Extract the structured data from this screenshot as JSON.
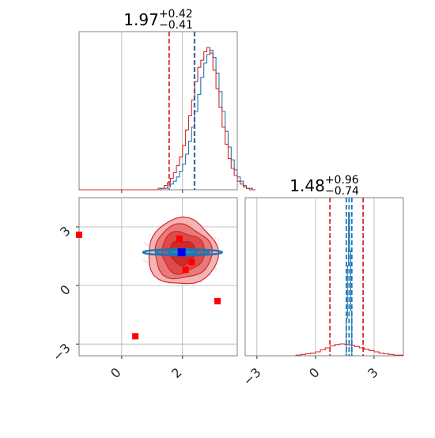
{
  "chart_data": [
    {
      "type": "histogram",
      "panel": "top-left",
      "title": {
        "value": "1.97",
        "plus": "+0.42",
        "minus": "−0.41"
      },
      "xlim": [
        -1.4,
        3.8
      ],
      "bin_start": -1.4,
      "bin_width": 0.1,
      "series": [
        {
          "color": "#1f77b4",
          "counts": [
            0,
            0,
            0,
            0,
            0,
            0,
            0,
            0,
            0,
            0,
            0,
            0,
            0,
            0,
            0,
            0,
            0,
            0,
            0,
            0,
            0,
            0,
            0,
            0,
            0,
            0,
            0,
            1,
            1,
            2,
            4,
            6,
            9,
            13,
            18,
            25,
            34,
            44,
            55,
            67,
            79,
            89,
            95,
            98,
            93,
            82,
            69,
            55,
            41,
            30,
            21,
            14,
            9,
            6,
            3,
            1,
            1,
            0
          ]
        },
        {
          "color": "#d62728",
          "counts": [
            0,
            0,
            0,
            0,
            0,
            0,
            0,
            0,
            0,
            0,
            0,
            0,
            0,
            0,
            0,
            0,
            0,
            0,
            0,
            0,
            0,
            0,
            0,
            0,
            0,
            0,
            1,
            1,
            3,
            5,
            8,
            12,
            17,
            23,
            31,
            42,
            52,
            63,
            76,
            86,
            91,
            97,
            100,
            96,
            84,
            71,
            58,
            44,
            32,
            22,
            15,
            10,
            6,
            4,
            2,
            1,
            0,
            0
          ]
        }
      ],
      "quantile_lines": [
        {
          "color": "#d62728",
          "x": [
            1.56,
            2.39
          ]
        },
        {
          "color": "#1f77b4",
          "x": [
            2.4
          ]
        }
      ]
    },
    {
      "type": "2d-density",
      "panel": "bottom-left",
      "xlim": [
        -1.4,
        3.8
      ],
      "ylim": [
        -3.6,
        4.5
      ],
      "xticks": [
        "0",
        "2"
      ],
      "yticks": [
        "−3",
        "0",
        "3"
      ],
      "xtick_values": [
        0,
        2
      ],
      "ytick_values": [
        -3,
        0,
        3
      ],
      "red_markers": [
        [
          -1.4,
          2.6
        ],
        [
          0.45,
          -2.6
        ],
        [
          1.9,
          2.4
        ],
        [
          2.3,
          1.2
        ],
        [
          2.1,
          0.8
        ],
        [
          3.15,
          -0.8
        ]
      ],
      "blue_markers": [
        [
          1.97,
          1.7
        ]
      ],
      "red_center": [
        2.0,
        1.7
      ],
      "blue_center": [
        2.0,
        1.7
      ]
    },
    {
      "type": "histogram",
      "panel": "bottom-right",
      "title": {
        "value": "1.48",
        "plus": "+0.96",
        "minus": "−0.74"
      },
      "xlim": [
        -3.6,
        4.5
      ],
      "xticks": [
        "−3",
        "0",
        "3"
      ],
      "xtick_values": [
        -3,
        0,
        3
      ],
      "quantile_lines": [
        {
          "color": "#d62728",
          "x": [
            0.74,
            2.44
          ]
        },
        {
          "color": "#1f77b4",
          "x": [
            1.58,
            1.72,
            1.86
          ]
        }
      ],
      "red_hist": {
        "bin_start": -1.0,
        "bin_width": 0.25,
        "counts": [
          1,
          2,
          3,
          4,
          6,
          9,
          12,
          15,
          17,
          18,
          17,
          16,
          14,
          12,
          10,
          8,
          6,
          4,
          3,
          2,
          1,
          1
        ]
      },
      "blue_spike": {
        "center": 1.72,
        "halfwidth": 0.14
      }
    }
  ]
}
